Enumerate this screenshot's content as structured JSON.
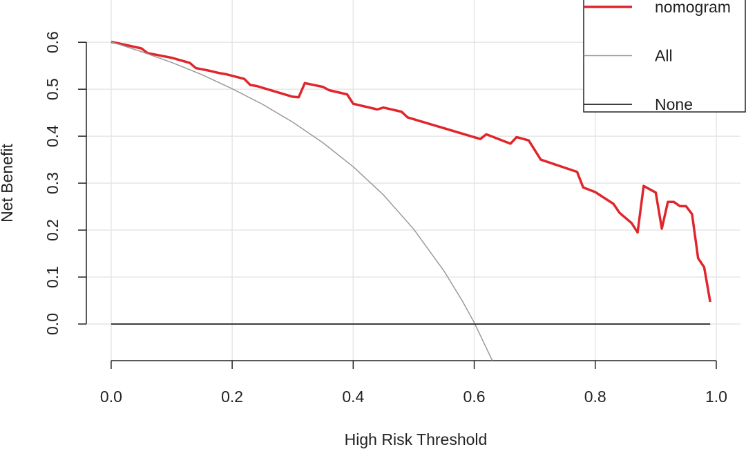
{
  "chart_data": {
    "type": "line",
    "xlabel": "High Risk Threshold",
    "ylabel": "Net Benefit",
    "xlim": [
      -0.041,
      1.04
    ],
    "ylim": [
      -0.078,
      0.69
    ],
    "xticks": [
      {
        "value": 0,
        "label": "0.0"
      },
      0.2,
      0.4,
      0.6,
      0.8,
      {
        "value": 1,
        "label": "1.0"
      }
    ],
    "yticks": [
      {
        "value": 0,
        "label": "0.0"
      },
      0.1,
      0.2,
      0.3,
      0.4,
      0.5,
      0.6
    ],
    "grid": true,
    "legend": "top-right",
    "series": [
      {
        "name": "nomogram",
        "color": "#e0262b",
        "x": [
          0,
          0.05,
          0.06,
          0.1,
          0.13,
          0.14,
          0.16,
          0.18,
          0.19,
          0.22,
          0.23,
          0.24,
          0.3,
          0.31,
          0.32,
          0.35,
          0.36,
          0.39,
          0.4,
          0.44,
          0.45,
          0.48,
          0.49,
          0.61,
          0.62,
          0.66,
          0.67,
          0.69,
          0.71,
          0.77,
          0.78,
          0.8,
          0.83,
          0.84,
          0.86,
          0.87,
          0.88,
          0.9,
          0.91,
          0.92,
          0.93,
          0.94,
          0.95,
          0.96,
          0.97,
          0.98,
          0.99
        ],
        "values": [
          0.601,
          0.587,
          0.577,
          0.567,
          0.556,
          0.545,
          0.54,
          0.534,
          0.532,
          0.522,
          0.509,
          0.507,
          0.484,
          0.483,
          0.513,
          0.505,
          0.498,
          0.489,
          0.469,
          0.457,
          0.461,
          0.452,
          0.44,
          0.394,
          0.404,
          0.384,
          0.398,
          0.391,
          0.35,
          0.324,
          0.291,
          0.281,
          0.256,
          0.237,
          0.215,
          0.195,
          0.294,
          0.28,
          0.203,
          0.26,
          0.26,
          0.251,
          0.251,
          0.234,
          0.14,
          0.121,
          0.047
        ]
      },
      {
        "name": "All",
        "color": "#999999",
        "x": [
          0,
          0.05,
          0.1,
          0.15,
          0.2,
          0.25,
          0.3,
          0.35,
          0.4,
          0.45,
          0.5,
          0.55,
          0.58,
          0.6,
          0.63
        ],
        "values": [
          0.601,
          0.58,
          0.557,
          0.531,
          0.501,
          0.468,
          0.43,
          0.386,
          0.335,
          0.275,
          0.202,
          0.113,
          0.05,
          0.003,
          -0.078
        ]
      },
      {
        "name": "None",
        "color": "#222222",
        "x": [
          0,
          0.99
        ],
        "values": [
          0,
          0
        ]
      }
    ]
  }
}
